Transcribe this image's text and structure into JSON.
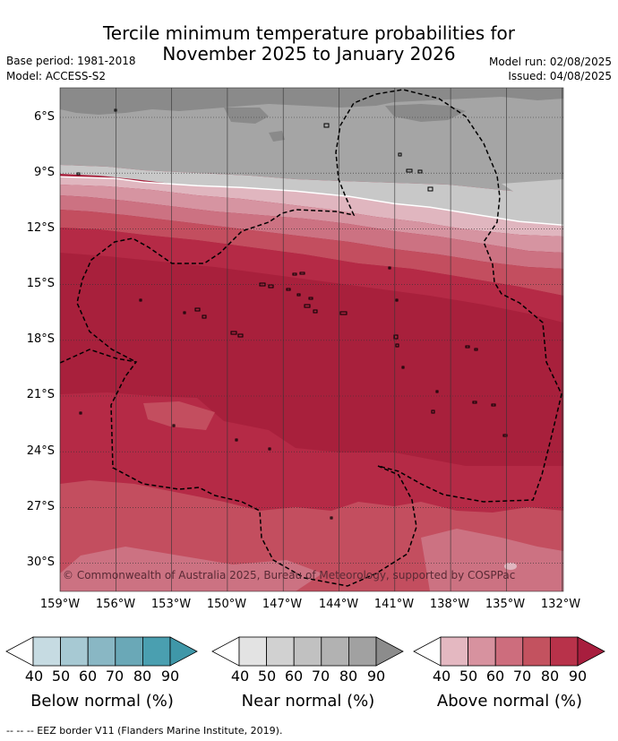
{
  "title": {
    "line1": "Tercile minimum temperature probabilities for",
    "line2": "November 2025 to January 2026"
  },
  "meta": {
    "base_period": "Base period: 1981-2018",
    "model": "Model: ACCESS-S2",
    "model_run": "Model run: 02/08/2025",
    "issued": "Issued: 04/08/2025"
  },
  "map": {
    "copyright": "© Commonwealth of Australia 2025, Bureau of Meteorology, supported by COSPPac",
    "lat_labels": [
      "6°S",
      "9°S",
      "12°S",
      "15°S",
      "18°S",
      "21°S",
      "24°S",
      "27°S",
      "30°S"
    ],
    "lon_labels": [
      "159°W",
      "156°W",
      "153°W",
      "150°W",
      "147°W",
      "144°W",
      "141°W",
      "138°W",
      "135°W",
      "132°W"
    ],
    "colors": {
      "near_dark": "#8a8a8a",
      "near_mid": "#a5a5a5",
      "near_light": "#c8c8c8",
      "near_pale": "#e3e3e3",
      "above_40": "#e0b6bf",
      "above_50": "#d694a1",
      "above_60": "#cc7282",
      "above_70": "#c34e5f",
      "above_80": "#b52a46",
      "above_90": "#a8203c"
    }
  },
  "legend": {
    "ticks": [
      "40",
      "50",
      "60",
      "70",
      "80",
      "90"
    ],
    "bars": [
      {
        "label": "Below normal (%)",
        "colors": [
          "#c6dbe2",
          "#a7c9d3",
          "#89b7c4",
          "#6aa8b7",
          "#4a9fb0"
        ]
      },
      {
        "label": "Near normal (%)",
        "colors": [
          "#e3e3e3",
          "#d1d1d1",
          "#c1c1c1",
          "#b2b2b2",
          "#a1a1a1"
        ]
      },
      {
        "label": "Above normal (%)",
        "colors": [
          "#e4b8c1",
          "#d7929f",
          "#cd6d7d",
          "#c3525f",
          "#b8324a"
        ]
      }
    ],
    "extend_colors": [
      "#ffffff",
      "#3f97a8",
      "#ffffff",
      "#8c8c8c",
      "#ffffff",
      "#a81e3e"
    ]
  },
  "footer": "--  --  -- EEZ border V11 (Flanders Marine Institute, 2019)."
}
